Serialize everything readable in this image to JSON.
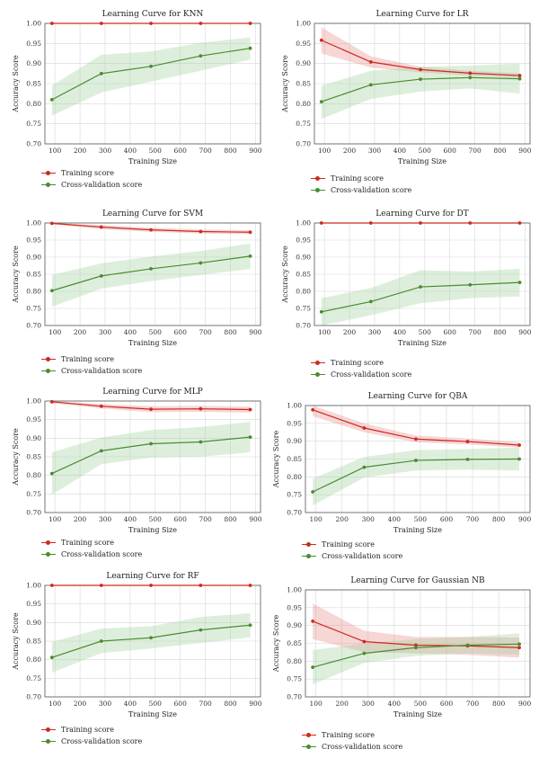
{
  "colors": {
    "train": "#cc2a1e",
    "cv": "#4a8c30",
    "train_band": "#e88a8a",
    "cv_band": "#9fd19a"
  },
  "legend": {
    "train_label": "Training score",
    "cv_label": "Cross-validation score"
  },
  "chart_data": [
    {
      "type": "line",
      "title": "Learning Curve for KNN",
      "xlabel": "Training Size",
      "ylabel": "Accuracy Score",
      "xlim": [
        60,
        920
      ],
      "ylim": [
        0.7,
        1.0
      ],
      "xticks": [
        100,
        200,
        300,
        400,
        500,
        600,
        700,
        800,
        900
      ],
      "yticks": [
        0.7,
        0.75,
        0.8,
        0.85,
        0.9,
        0.95,
        1.0
      ],
      "x": [
        88,
        285,
        483,
        681,
        879
      ],
      "series": [
        {
          "name": "Training score",
          "values": [
            1.0,
            1.0,
            1.0,
            1.0,
            1.0
          ],
          "band": [
            [
              0.999,
              1.0
            ],
            [
              0.999,
              1.0
            ],
            [
              0.999,
              1.0
            ],
            [
              0.999,
              1.0
            ],
            [
              0.999,
              1.0
            ]
          ]
        },
        {
          "name": "Cross-validation score",
          "values": [
            0.81,
            0.875,
            0.893,
            0.919,
            0.938
          ],
          "band": [
            [
              0.77,
              0.845
            ],
            [
              0.828,
              0.922
            ],
            [
              0.855,
              0.93
            ],
            [
              0.882,
              0.952
            ],
            [
              0.91,
              0.965
            ]
          ]
        }
      ]
    },
    {
      "type": "line",
      "title": "Learning Curve for LR",
      "xlabel": "Training Size",
      "ylabel": "Accuracy Score",
      "xlim": [
        60,
        920
      ],
      "ylim": [
        0.7,
        1.0
      ],
      "xticks": [
        100,
        200,
        300,
        400,
        500,
        600,
        700,
        800,
        900
      ],
      "yticks": [
        0.7,
        0.75,
        0.8,
        0.85,
        0.9,
        0.95,
        1.0
      ],
      "x": [
        88,
        285,
        483,
        681,
        879
      ],
      "series": [
        {
          "name": "Training score",
          "values": [
            0.958,
            0.904,
            0.885,
            0.876,
            0.87
          ],
          "band": [
            [
              0.925,
              0.99
            ],
            [
              0.89,
              0.918
            ],
            [
              0.878,
              0.892
            ],
            [
              0.87,
              0.882
            ],
            [
              0.865,
              0.876
            ]
          ]
        },
        {
          "name": "Cross-validation score",
          "values": [
            0.805,
            0.847,
            0.861,
            0.865,
            0.862
          ],
          "band": [
            [
              0.762,
              0.845
            ],
            [
              0.812,
              0.882
            ],
            [
              0.83,
              0.892
            ],
            [
              0.838,
              0.895
            ],
            [
              0.825,
              0.9
            ]
          ]
        }
      ]
    },
    {
      "type": "line",
      "title": "Learning Curve for SVM",
      "xlabel": "Training Size",
      "ylabel": "Accuracy Score",
      "xlim": [
        60,
        920
      ],
      "ylim": [
        0.7,
        1.0
      ],
      "xticks": [
        100,
        200,
        300,
        400,
        500,
        600,
        700,
        800,
        900
      ],
      "yticks": [
        0.7,
        0.75,
        0.8,
        0.85,
        0.9,
        0.95,
        1.0
      ],
      "x": [
        88,
        285,
        483,
        681,
        879
      ],
      "series": [
        {
          "name": "Training score",
          "values": [
            0.999,
            0.988,
            0.98,
            0.975,
            0.973
          ],
          "band": [
            [
              0.996,
              1.0
            ],
            [
              0.982,
              0.994
            ],
            [
              0.974,
              0.986
            ],
            [
              0.969,
              0.981
            ],
            [
              0.967,
              0.979
            ]
          ]
        },
        {
          "name": "Cross-validation score",
          "values": [
            0.802,
            0.845,
            0.866,
            0.883,
            0.903
          ],
          "band": [
            [
              0.755,
              0.848
            ],
            [
              0.808,
              0.882
            ],
            [
              0.83,
              0.902
            ],
            [
              0.848,
              0.918
            ],
            [
              0.865,
              0.94
            ]
          ]
        }
      ]
    },
    {
      "type": "line",
      "title": "Learning Curve for DT",
      "xlabel": "Training Size",
      "ylabel": "Accuracy Score",
      "xlim": [
        60,
        920
      ],
      "ylim": [
        0.7,
        1.0
      ],
      "xticks": [
        100,
        200,
        300,
        400,
        500,
        600,
        700,
        800,
        900
      ],
      "yticks": [
        0.7,
        0.75,
        0.8,
        0.85,
        0.9,
        0.95,
        1.0
      ],
      "x": [
        88,
        285,
        483,
        681,
        879
      ],
      "series": [
        {
          "name": "Training score",
          "values": [
            1.0,
            1.0,
            1.0,
            1.0,
            1.0
          ],
          "band": [
            [
              0.999,
              1.0
            ],
            [
              0.999,
              1.0
            ],
            [
              0.999,
              1.0
            ],
            [
              0.999,
              1.0
            ],
            [
              0.999,
              1.0
            ]
          ]
        },
        {
          "name": "Cross-validation score",
          "values": [
            0.74,
            0.77,
            0.813,
            0.819,
            0.826
          ],
          "band": [
            [
              0.7,
              0.78
            ],
            [
              0.73,
              0.81
            ],
            [
              0.765,
              0.862
            ],
            [
              0.78,
              0.858
            ],
            [
              0.785,
              0.866
            ]
          ]
        }
      ]
    },
    {
      "type": "line",
      "title": "Learning Curve for MLP",
      "xlabel": "Training Size",
      "ylabel": "Accuracy Score",
      "xlim": [
        60,
        920
      ],
      "ylim": [
        0.7,
        1.0
      ],
      "xticks": [
        100,
        200,
        300,
        400,
        500,
        600,
        700,
        800,
        900
      ],
      "yticks": [
        0.7,
        0.75,
        0.8,
        0.85,
        0.9,
        0.95,
        1.0
      ],
      "x": [
        88,
        285,
        483,
        681,
        879
      ],
      "series": [
        {
          "name": "Training score",
          "values": [
            0.998,
            0.986,
            0.978,
            0.979,
            0.977
          ],
          "band": [
            [
              0.994,
              1.0
            ],
            [
              0.98,
              0.992
            ],
            [
              0.97,
              0.986
            ],
            [
              0.971,
              0.987
            ],
            [
              0.969,
              0.985
            ]
          ]
        },
        {
          "name": "Cross-validation score",
          "values": [
            0.805,
            0.866,
            0.885,
            0.89,
            0.903
          ],
          "band": [
            [
              0.748,
              0.862
            ],
            [
              0.83,
              0.902
            ],
            [
              0.848,
              0.922
            ],
            [
              0.85,
              0.93
            ],
            [
              0.862,
              0.944
            ]
          ]
        }
      ]
    },
    {
      "type": "line",
      "title": "Learning Curve for QBA",
      "xlabel": "Training Size",
      "ylabel": "Accuracy Score",
      "xlim": [
        60,
        920
      ],
      "ylim": [
        0.7,
        1.0
      ],
      "xticks": [
        100,
        200,
        300,
        400,
        500,
        600,
        700,
        800,
        900
      ],
      "yticks": [
        0.7,
        0.75,
        0.8,
        0.85,
        0.9,
        0.95,
        1.0
      ],
      "x": [
        88,
        285,
        483,
        681,
        879
      ],
      "series": [
        {
          "name": "Training score",
          "values": [
            0.988,
            0.937,
            0.906,
            0.899,
            0.889
          ],
          "band": [
            [
              0.97,
              1.0
            ],
            [
              0.925,
              0.95
            ],
            [
              0.897,
              0.916
            ],
            [
              0.891,
              0.908
            ],
            [
              0.882,
              0.897
            ]
          ]
        },
        {
          "name": "Cross-validation score",
          "values": [
            0.758,
            0.827,
            0.846,
            0.849,
            0.85
          ],
          "band": [
            [
              0.72,
              0.795
            ],
            [
              0.798,
              0.856
            ],
            [
              0.818,
              0.875
            ],
            [
              0.82,
              0.878
            ],
            [
              0.818,
              0.882
            ]
          ]
        }
      ]
    },
    {
      "type": "line",
      "title": "Learning Curve for RF",
      "xlabel": "Training Size",
      "ylabel": "Accuracy Score",
      "xlim": [
        60,
        920
      ],
      "ylim": [
        0.7,
        1.0
      ],
      "xticks": [
        100,
        200,
        300,
        400,
        500,
        600,
        700,
        800,
        900
      ],
      "yticks": [
        0.7,
        0.75,
        0.8,
        0.85,
        0.9,
        0.95,
        1.0
      ],
      "x": [
        88,
        285,
        483,
        681,
        879
      ],
      "series": [
        {
          "name": "Training score",
          "values": [
            1.0,
            1.0,
            1.0,
            1.0,
            1.0
          ],
          "band": [
            [
              0.999,
              1.0
            ],
            [
              0.999,
              1.0
            ],
            [
              0.999,
              1.0
            ],
            [
              0.999,
              1.0
            ],
            [
              0.999,
              1.0
            ]
          ]
        },
        {
          "name": "Cross-validation score",
          "values": [
            0.806,
            0.85,
            0.859,
            0.88,
            0.893
          ],
          "band": [
            [
              0.765,
              0.848
            ],
            [
              0.818,
              0.884
            ],
            [
              0.83,
              0.89
            ],
            [
              0.845,
              0.915
            ],
            [
              0.86,
              0.925
            ]
          ]
        }
      ]
    },
    {
      "type": "line",
      "title": "Learning Curve for Gaussian NB",
      "xlabel": "Training Size",
      "ylabel": "Accuracy Score",
      "xlim": [
        60,
        920
      ],
      "ylim": [
        0.7,
        1.0
      ],
      "xticks": [
        100,
        200,
        300,
        400,
        500,
        600,
        700,
        800,
        900
      ],
      "yticks": [
        0.7,
        0.75,
        0.8,
        0.85,
        0.9,
        0.95,
        1.0
      ],
      "x": [
        88,
        285,
        483,
        681,
        879
      ],
      "series": [
        {
          "name": "Training score",
          "values": [
            0.912,
            0.855,
            0.845,
            0.843,
            0.838
          ],
          "band": [
            [
              0.862,
              0.962
            ],
            [
              0.825,
              0.885
            ],
            [
              0.822,
              0.868
            ],
            [
              0.818,
              0.868
            ],
            [
              0.81,
              0.866
            ]
          ]
        },
        {
          "name": "Cross-validation score",
          "values": [
            0.783,
            0.822,
            0.838,
            0.845,
            0.848
          ],
          "band": [
            [
              0.735,
              0.831
            ],
            [
              0.795,
              0.85
            ],
            [
              0.815,
              0.862
            ],
            [
              0.822,
              0.868
            ],
            [
              0.818,
              0.878
            ]
          ]
        }
      ]
    }
  ]
}
